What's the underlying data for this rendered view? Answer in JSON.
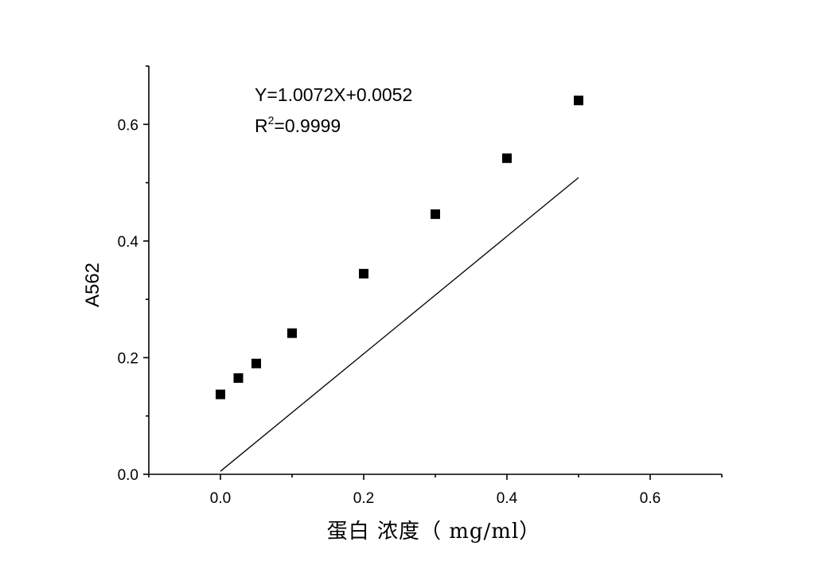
{
  "chart_data": {
    "type": "scatter",
    "xlabel": "蛋白 浓度（ mg/ml）",
    "ylabel": "A562",
    "xlim": [
      -0.1,
      0.7
    ],
    "ylim": [
      0.0,
      0.7
    ],
    "x_ticks": [
      0.0,
      0.2,
      0.4,
      0.6
    ],
    "x_tick_labels": [
      "0.0",
      "0.2",
      "0.4",
      "0.6"
    ],
    "y_ticks": [
      0.0,
      0.2,
      0.4,
      0.6
    ],
    "y_tick_labels": [
      "0.0",
      "0.2",
      "0.4",
      "0.6"
    ],
    "grid": false,
    "series": [
      {
        "x": [
          0.0,
          0.025,
          0.05,
          0.1,
          0.2,
          0.3,
          0.4,
          0.5
        ],
        "y": [
          0.137,
          0.165,
          0.19,
          0.242,
          0.344,
          0.446,
          0.542,
          0.641
        ],
        "marker": "square",
        "color": "#000000"
      }
    ],
    "fit_line": {
      "slope": 1.0072,
      "intercept": 0.0052,
      "x_range": [
        0.0,
        0.5
      ],
      "color": "#000000"
    },
    "annotations": {
      "equation": "Y=1.0072X+0.0052",
      "r2_base": "R",
      "r2_exp": "2",
      "r2_value": "=0.9999"
    }
  }
}
